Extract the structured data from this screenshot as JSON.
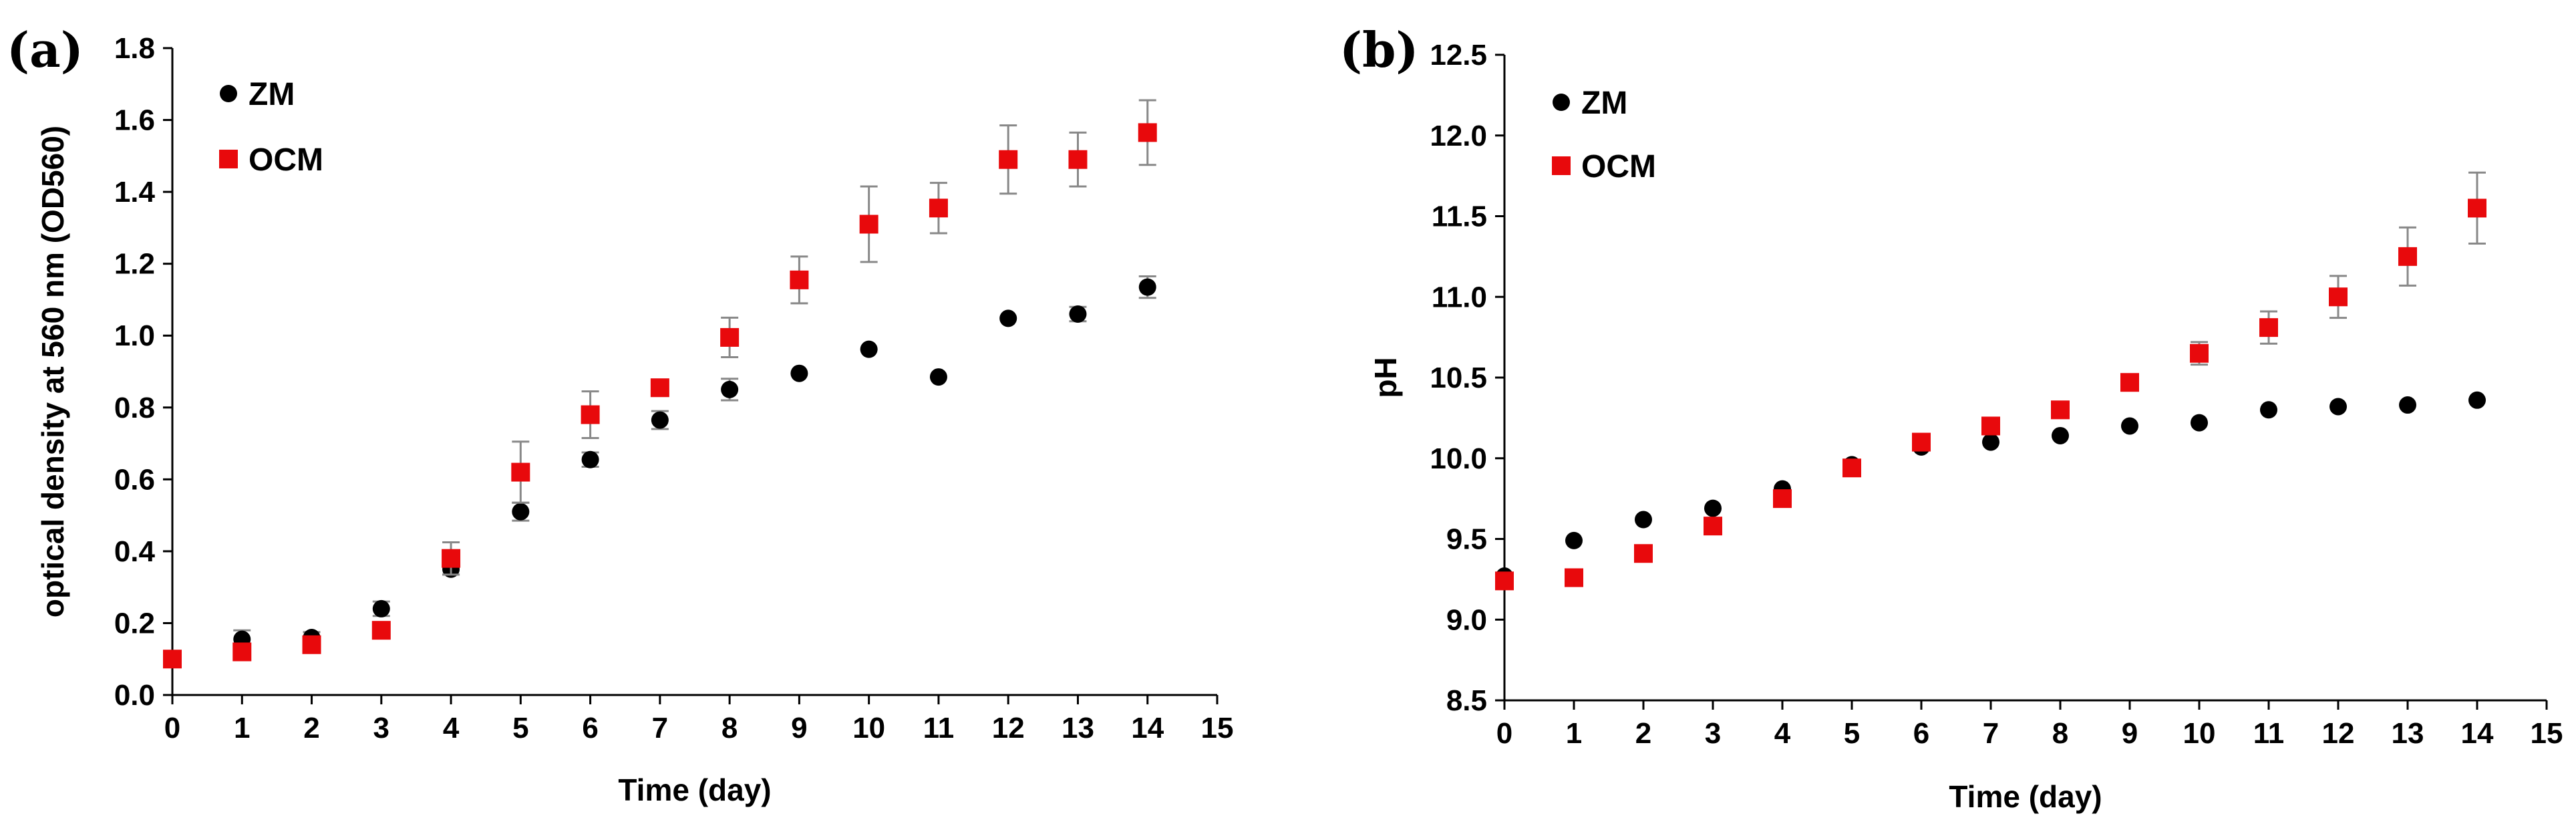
{
  "chart_data": [
    {
      "panel_label": "(a)",
      "type": "scatter",
      "title": "",
      "xlabel": "Time (day)",
      "ylabel": "optical density at 560 nm (OD560)",
      "xlim": [
        0,
        15
      ],
      "ylim": [
        0,
        1.8
      ],
      "xticks": [
        "0",
        "1",
        "2",
        "3",
        "4",
        "5",
        "6",
        "7",
        "8",
        "9",
        "10",
        "11",
        "12",
        "13",
        "14",
        "15"
      ],
      "yticks": [
        "0.0",
        "0.2",
        "0.4",
        "0.6",
        "0.8",
        "1.0",
        "1.2",
        "1.4",
        "1.6",
        "1.8"
      ],
      "x": [
        0,
        1,
        2,
        3,
        4,
        5,
        6,
        7,
        8,
        9,
        10,
        11,
        12,
        13,
        14
      ],
      "legend_position": "top-left",
      "grid": false,
      "series": [
        {
          "name": "ZM",
          "marker": "circle",
          "color": "#000000",
          "values": [
            0.1,
            0.155,
            0.16,
            0.24,
            0.35,
            0.51,
            0.655,
            0.765,
            0.85,
            0.895,
            0.962,
            0.885,
            1.048,
            1.06,
            1.135
          ],
          "errors": [
            0,
            0.025,
            0.015,
            0.02,
            0.015,
            0.025,
            0.02,
            0.025,
            0.03,
            0,
            0,
            0,
            0,
            0.02,
            0.03
          ]
        },
        {
          "name": "OCM",
          "marker": "square",
          "color": "#e8090c",
          "values": [
            0.1,
            0.12,
            0.14,
            0.18,
            0.38,
            0.62,
            0.78,
            0.855,
            0.995,
            1.155,
            1.31,
            1.355,
            1.49,
            1.49,
            1.565
          ],
          "errors": [
            0,
            0,
            0,
            0,
            0.045,
            0.085,
            0.065,
            0,
            0.055,
            0.065,
            0.105,
            0.07,
            0.095,
            0.075,
            0.09
          ]
        }
      ]
    },
    {
      "panel_label": "(b)",
      "type": "scatter",
      "title": "",
      "xlabel": "Time (day)",
      "ylabel": "pH",
      "xlim": [
        0,
        15
      ],
      "ylim": [
        8.5,
        12.5
      ],
      "xticks": [
        "0",
        "1",
        "2",
        "3",
        "4",
        "5",
        "6",
        "7",
        "8",
        "9",
        "10",
        "11",
        "12",
        "13",
        "14",
        "15"
      ],
      "yticks": [
        "8.5",
        "9.0",
        "9.5",
        "10.0",
        "10.5",
        "11.0",
        "11.5",
        "12.0",
        "12.5"
      ],
      "x": [
        0,
        1,
        2,
        3,
        4,
        5,
        6,
        7,
        8,
        9,
        10,
        11,
        12,
        13,
        14
      ],
      "legend_position": "top-left",
      "grid": false,
      "series": [
        {
          "name": "ZM",
          "marker": "circle",
          "color": "#000000",
          "values": [
            9.27,
            9.49,
            9.62,
            9.69,
            9.81,
            9.96,
            10.07,
            10.1,
            10.14,
            10.2,
            10.22,
            10.3,
            10.32,
            10.33,
            10.36
          ],
          "errors": [
            0,
            0,
            0,
            0,
            0,
            0,
            0,
            0,
            0,
            0,
            0,
            0,
            0,
            0,
            0
          ]
        },
        {
          "name": "OCM",
          "marker": "square",
          "color": "#e8090c",
          "values": [
            9.24,
            9.26,
            9.41,
            9.58,
            9.75,
            9.94,
            10.1,
            10.2,
            10.3,
            10.47,
            10.65,
            10.81,
            11.0,
            11.25,
            11.55
          ],
          "errors": [
            0,
            0,
            0,
            0,
            0,
            0,
            0,
            0,
            0,
            0,
            0.07,
            0.1,
            0.13,
            0.18,
            0.22
          ]
        }
      ]
    }
  ]
}
